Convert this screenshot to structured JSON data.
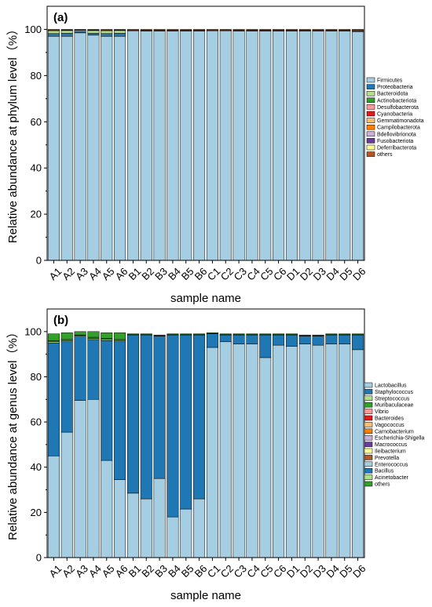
{
  "chart_data": [
    {
      "type": "bar",
      "stacked": true,
      "panel_label": "(a)",
      "xlabel": "sample name",
      "ylabel": "Relative abundance at phylum level（%）",
      "ylim": [
        0,
        110
      ],
      "yticks": [
        0,
        20,
        40,
        60,
        80,
        100
      ],
      "categories": [
        "A1",
        "A2",
        "A3",
        "A4",
        "A5",
        "A6",
        "B1",
        "B2",
        "B3",
        "B4",
        "B5",
        "B6",
        "C1",
        "C2",
        "C3",
        "C4",
        "C5",
        "C6",
        "D1",
        "D2",
        "D3",
        "D4",
        "D5",
        "D6"
      ],
      "legend_position": "right",
      "series": [
        {
          "name": "Firmicutes",
          "color": "#a6cee3",
          "values": [
            97.0,
            97.0,
            98.5,
            97.5,
            97.0,
            97.0,
            99.4,
            99.3,
            99.3,
            99.3,
            99.3,
            99.3,
            99.4,
            99.4,
            99.3,
            99.3,
            99.3,
            99.3,
            99.3,
            99.3,
            99.3,
            99.3,
            99.3,
            99.0
          ]
        },
        {
          "name": "Proteobacteria",
          "color": "#1f78b4",
          "values": [
            1.2,
            1.3,
            0.6,
            0.8,
            1.2,
            1.3,
            0.1,
            0.2,
            0.2,
            0.2,
            0.2,
            0.2,
            0.1,
            0.1,
            0.2,
            0.2,
            0.2,
            0.2,
            0.2,
            0.2,
            0.2,
            0.2,
            0.2,
            0.5
          ]
        },
        {
          "name": "Bacteroidota",
          "color": "#b2df8a",
          "values": [
            1.2,
            1.2,
            0.5,
            1.2,
            1.2,
            1.2,
            0.1,
            0.1,
            0.1,
            0.1,
            0.1,
            0.1,
            0.1,
            0.1,
            0.1,
            0.1,
            0.1,
            0.1,
            0.1,
            0.1,
            0.1,
            0.1,
            0.1,
            0.1
          ]
        },
        {
          "name": "Actinobacteriota",
          "color": "#33a02c",
          "values": [
            0.2,
            0.2,
            0.1,
            0.2,
            0.2,
            0.2,
            0,
            0,
            0,
            0,
            0,
            0,
            0,
            0,
            0,
            0,
            0,
            0,
            0,
            0,
            0,
            0,
            0,
            0
          ]
        },
        {
          "name": "Desulfobacterota",
          "color": "#fb9a99",
          "values": [
            0,
            0,
            0,
            0,
            0,
            0,
            0,
            0,
            0,
            0,
            0,
            0,
            0,
            0,
            0,
            0,
            0,
            0,
            0,
            0,
            0,
            0,
            0,
            0
          ]
        },
        {
          "name": "Cyanobacteria",
          "color": "#e31a1c",
          "values": [
            0,
            0,
            0,
            0,
            0,
            0,
            0,
            0,
            0,
            0,
            0,
            0,
            0,
            0,
            0,
            0,
            0,
            0,
            0,
            0,
            0,
            0,
            0,
            0
          ]
        },
        {
          "name": "Gemmatimonadota",
          "color": "#fdbf6f",
          "values": [
            0,
            0,
            0,
            0,
            0,
            0,
            0,
            0,
            0,
            0,
            0,
            0,
            0,
            0,
            0,
            0,
            0,
            0,
            0,
            0,
            0,
            0,
            0,
            0
          ]
        },
        {
          "name": "Campilobacterota",
          "color": "#ff7f00",
          "values": [
            0,
            0,
            0,
            0,
            0,
            0,
            0,
            0,
            0,
            0,
            0,
            0,
            0,
            0,
            0,
            0,
            0,
            0,
            0,
            0,
            0,
            0,
            0,
            0
          ]
        },
        {
          "name": "Bdellovibrionota",
          "color": "#cab2d6",
          "values": [
            0,
            0,
            0,
            0,
            0,
            0,
            0,
            0,
            0,
            0,
            0,
            0,
            0,
            0,
            0,
            0,
            0,
            0,
            0,
            0,
            0,
            0,
            0,
            0
          ]
        },
        {
          "name": "Fusobacteriota",
          "color": "#6a3d9a",
          "values": [
            0,
            0,
            0,
            0,
            0,
            0,
            0,
            0,
            0,
            0,
            0,
            0,
            0,
            0,
            0,
            0,
            0,
            0,
            0,
            0,
            0,
            0,
            0,
            0
          ]
        },
        {
          "name": "Deferribacterota",
          "color": "#ffff99",
          "values": [
            0,
            0,
            0,
            0,
            0,
            0,
            0,
            0,
            0,
            0,
            0,
            0,
            0,
            0,
            0,
            0,
            0,
            0,
            0,
            0,
            0,
            0,
            0,
            0
          ]
        },
        {
          "name": "others",
          "color": "#b15928",
          "values": [
            0.4,
            0.3,
            0.3,
            0.3,
            0.4,
            0.3,
            0.4,
            0.4,
            0.4,
            0.4,
            0.4,
            0.4,
            0.4,
            0.4,
            0.4,
            0.4,
            0.4,
            0.4,
            0.4,
            0.4,
            0.4,
            0.4,
            0.4,
            0.4
          ]
        }
      ]
    },
    {
      "type": "bar",
      "stacked": true,
      "panel_label": "(b)",
      "xlabel": "sample name",
      "ylabel": "Relative abundance at genus level（%）",
      "ylim": [
        0,
        110
      ],
      "yticks": [
        0,
        20,
        40,
        60,
        80,
        100
      ],
      "categories": [
        "A1",
        "A2",
        "A3",
        "A4",
        "A5",
        "A6",
        "B1",
        "B2",
        "B3",
        "B4",
        "B5",
        "B6",
        "C1",
        "C2",
        "C3",
        "C4",
        "C5",
        "C6",
        "D1",
        "D2",
        "D3",
        "D4",
        "D5",
        "D6"
      ],
      "legend_position": "right",
      "series": [
        {
          "name": "Lactobacillus",
          "color": "#a6cee3",
          "values": [
            45,
            55.5,
            69.5,
            70,
            43,
            34.5,
            28.5,
            26,
            35,
            18,
            21.5,
            26,
            93,
            95.5,
            94.5,
            94.5,
            88.5,
            94,
            93.5,
            94.5,
            94,
            94.5,
            94.5,
            92
          ]
        },
        {
          "name": "Staphylococcus",
          "color": "#1f78b4",
          "values": [
            50,
            40,
            28.5,
            26.5,
            53,
            61,
            70,
            72.5,
            63,
            80.5,
            77,
            72.5,
            6,
            3,
            4,
            4,
            10,
            4.5,
            5,
            3.5,
            4,
            4,
            4,
            6.5
          ]
        },
        {
          "name": "Streptococcus",
          "color": "#b2df8a",
          "values": [
            0.5,
            0.5,
            0.3,
            0.5,
            0.5,
            0.5,
            0.2,
            0.2,
            0.2,
            0.2,
            0.2,
            0.2,
            0.2,
            0.2,
            0.2,
            0.2,
            0.2,
            0.2,
            0.2,
            0.2,
            0.2,
            0.2,
            0.2,
            0.2
          ]
        },
        {
          "name": "Muribaculaceae",
          "color": "#33a02c",
          "values": [
            0.5,
            0.5,
            0.2,
            0.5,
            0.5,
            0.5,
            0,
            0,
            0,
            0,
            0,
            0,
            0,
            0,
            0,
            0,
            0,
            0,
            0,
            0,
            0,
            0,
            0,
            0
          ]
        },
        {
          "name": "Vibrio",
          "color": "#fb9a99",
          "values": [
            0,
            0,
            0,
            0,
            0,
            0,
            0,
            0,
            0,
            0,
            0,
            0,
            0,
            0,
            0,
            0,
            0,
            0,
            0,
            0,
            0,
            0,
            0,
            0
          ]
        },
        {
          "name": "Bacteroides",
          "color": "#e31a1c",
          "values": [
            0,
            0,
            0,
            0,
            0,
            0,
            0,
            0,
            0,
            0,
            0,
            0,
            0,
            0,
            0,
            0,
            0,
            0,
            0,
            0,
            0,
            0,
            0,
            0
          ]
        },
        {
          "name": "Vagococcus",
          "color": "#fdbf6f",
          "values": [
            0,
            0,
            0,
            0,
            0,
            0,
            0,
            0,
            0,
            0,
            0,
            0,
            0,
            0,
            0,
            0,
            0,
            0,
            0,
            0,
            0,
            0,
            0,
            0
          ]
        },
        {
          "name": "Carnobacterium",
          "color": "#ff7f00",
          "values": [
            0,
            0,
            0,
            0,
            0,
            0,
            0,
            0,
            0,
            0,
            0,
            0,
            0,
            0,
            0,
            0,
            0,
            0,
            0,
            0,
            0,
            0,
            0,
            0
          ]
        },
        {
          "name": "Escherichia-Shigella",
          "color": "#cab2d6",
          "values": [
            0,
            0,
            0,
            0,
            0,
            0,
            0,
            0,
            0,
            0,
            0,
            0,
            0,
            0,
            0,
            0,
            0,
            0,
            0,
            0,
            0,
            0,
            0,
            0
          ]
        },
        {
          "name": "Macrococcus",
          "color": "#6a3d9a",
          "values": [
            0,
            0,
            0,
            0,
            0,
            0,
            0,
            0,
            0,
            0,
            0,
            0,
            0,
            0,
            0,
            0,
            0,
            0,
            0,
            0,
            0,
            0,
            0,
            0
          ]
        },
        {
          "name": "Ileibacterium",
          "color": "#ffff99",
          "values": [
            0,
            0,
            0,
            0,
            0,
            0,
            0,
            0,
            0,
            0,
            0,
            0,
            0,
            0,
            0,
            0,
            0,
            0,
            0,
            0,
            0,
            0,
            0,
            0
          ]
        },
        {
          "name": "Prevotella",
          "color": "#b15928",
          "values": [
            0,
            0,
            0,
            0,
            0,
            0,
            0,
            0,
            0,
            0,
            0,
            0,
            0,
            0,
            0,
            0,
            0,
            0,
            0,
            0,
            0,
            0,
            0,
            0
          ]
        },
        {
          "name": "Enterococcus",
          "color": "#a6cee3",
          "values": [
            0,
            0,
            0,
            0,
            0,
            0,
            0,
            0,
            0,
            0,
            0,
            0,
            0,
            0,
            0,
            0,
            0,
            0,
            0,
            0,
            0,
            0,
            0,
            0
          ]
        },
        {
          "name": "Bacillus",
          "color": "#1f78b4",
          "values": [
            0,
            0,
            0,
            0,
            0,
            0,
            0,
            0,
            0,
            0,
            0,
            0,
            0,
            0,
            0,
            0,
            0,
            0,
            0,
            0,
            0,
            0,
            0,
            0
          ]
        },
        {
          "name": "Acinetobacter",
          "color": "#b2df8a",
          "values": [
            0,
            0,
            0,
            0,
            0,
            0,
            0,
            0,
            0,
            0,
            0,
            0,
            0,
            0,
            0,
            0,
            0,
            0,
            0,
            0,
            0,
            0,
            0,
            0
          ]
        },
        {
          "name": "others",
          "color": "#33a02c",
          "values": [
            3,
            3,
            1.5,
            2.5,
            2.5,
            3,
            0.3,
            0.3,
            0.3,
            0.3,
            0.3,
            0.3,
            0.3,
            0.3,
            0.3,
            0.3,
            0.3,
            0.3,
            0.3,
            0.3,
            0.3,
            0.3,
            0.3,
            0.3
          ]
        }
      ]
    }
  ]
}
